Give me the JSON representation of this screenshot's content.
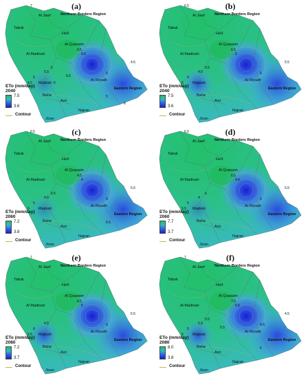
{
  "regions": [
    {
      "key": "al_jawf",
      "label": "Al Jawf",
      "bold": false
    },
    {
      "key": "northern",
      "label": "Northern Borders Region",
      "bold": true
    },
    {
      "key": "tabuk",
      "label": "Tabuk",
      "bold": false
    },
    {
      "key": "hail",
      "label": "Ha'il",
      "bold": false
    },
    {
      "key": "qassim",
      "label": "Al Quassim",
      "bold": false
    },
    {
      "key": "madinah",
      "label": "Al Madinah",
      "bold": false
    },
    {
      "key": "riyadh",
      "label": "Ar Riyadh",
      "bold": false
    },
    {
      "key": "eastern",
      "label": "Eastern Region",
      "bold": true
    },
    {
      "key": "makkah",
      "label": "Makkah",
      "bold": false
    },
    {
      "key": "baha",
      "label": "Baha",
      "bold": false
    },
    {
      "key": "asir",
      "label": "Asir",
      "bold": false
    },
    {
      "key": "najran",
      "label": "Najran",
      "bold": false
    },
    {
      "key": "jizan",
      "label": "Jizan",
      "bold": false
    }
  ],
  "legend": {
    "contour_label": "Contour"
  },
  "colors": {
    "high": "#22c06a",
    "mid": "#37b6c8",
    "low": "#1b1fd0",
    "contour": "#c9b34a"
  },
  "panels": [
    {
      "letter": "(a)",
      "title": "ETo (mm/day)",
      "year": "2040",
      "max": "7.5",
      "min": "3.6",
      "contours": [
        "7",
        "6.5",
        "6.5",
        "5.5",
        "5",
        "4.5",
        "6",
        "4.5",
        "6",
        "5",
        "5.5",
        "6",
        "6"
      ]
    },
    {
      "letter": "(b)",
      "title": "ETo (mm/day)",
      "year": "2040",
      "max": "7.5",
      "min": "3.6",
      "contours": [
        "6.5",
        "6.5",
        "5",
        "4.5",
        "4",
        "5.5",
        "6",
        "6",
        "5.5"
      ]
    },
    {
      "letter": "(c)",
      "title": "ETo (mm/day)",
      "year": "2060",
      "max": "7.2",
      "min": "3.8",
      "contours": [
        "6.5",
        "4.5",
        "4",
        "4.5",
        "5",
        "5.5",
        "6",
        "6",
        "5.5",
        "6.5"
      ]
    },
    {
      "letter": "(d)",
      "title": "ETo (mm/day)",
      "year": "2060",
      "max": "7.7",
      "min": "3.7",
      "contours": [
        "6.5",
        "6.5",
        "4.5",
        "4",
        "5",
        "5.5",
        "6",
        "5.5",
        "6"
      ]
    },
    {
      "letter": "(e)",
      "title": "ETo (mm/day)",
      "year": "2080",
      "max": "7.2",
      "min": "3.7",
      "contours": [
        "7",
        "6.5",
        "5",
        "4.5",
        "6",
        "5.5",
        "6",
        "5.5"
      ]
    },
    {
      "letter": "(f)",
      "title": "ETo (mm/day)",
      "year": "2080",
      "max": "8.0",
      "min": "3.8",
      "contours": [
        "7",
        "7.5",
        "6.5",
        "5.5",
        "5",
        "4.5",
        "4.5",
        "6",
        "5.5",
        "6",
        "5.5"
      ]
    }
  ]
}
